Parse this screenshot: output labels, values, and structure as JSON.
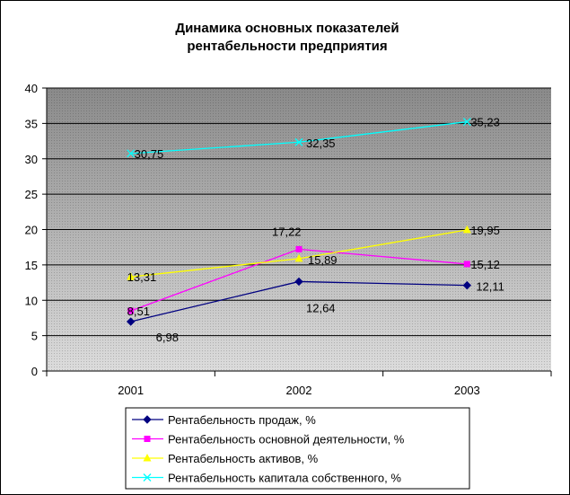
{
  "chart_data": {
    "type": "line",
    "title_lines": [
      "Динамика основных показателей",
      "рентабельности предприятия"
    ],
    "categories": [
      "2001",
      "2002",
      "2003"
    ],
    "ylim": [
      0,
      40
    ],
    "yticks": [
      "0",
      "5",
      "10",
      "15",
      "20",
      "25",
      "30",
      "35",
      "40"
    ],
    "grid": true,
    "legend_position": "bottom",
    "series": [
      {
        "name": "Рентабельность продаж, %",
        "values": [
          6.98,
          12.64,
          12.11
        ],
        "labels": [
          "6,98",
          "12,64",
          "12,11"
        ],
        "color": "#000080",
        "marker": "diamond"
      },
      {
        "name": "Рентабельность основной деятельности, %",
        "values": [
          8.51,
          17.22,
          15.12
        ],
        "labels": [
          "8,51",
          "17,22",
          "15,12"
        ],
        "color": "#ff00ff",
        "marker": "square"
      },
      {
        "name": "Рентабельность активов, %",
        "values": [
          13.31,
          15.89,
          19.95
        ],
        "labels": [
          "13,31",
          "15,89",
          "19,95"
        ],
        "color": "#ffff00",
        "marker": "triangle"
      },
      {
        "name": "Рентабельность капитала собственного, %",
        "values": [
          30.75,
          32.35,
          35.23
        ],
        "labels": [
          "30,75",
          "32,35",
          "35,23"
        ],
        "color": "#00ffff",
        "marker": "x"
      }
    ]
  }
}
